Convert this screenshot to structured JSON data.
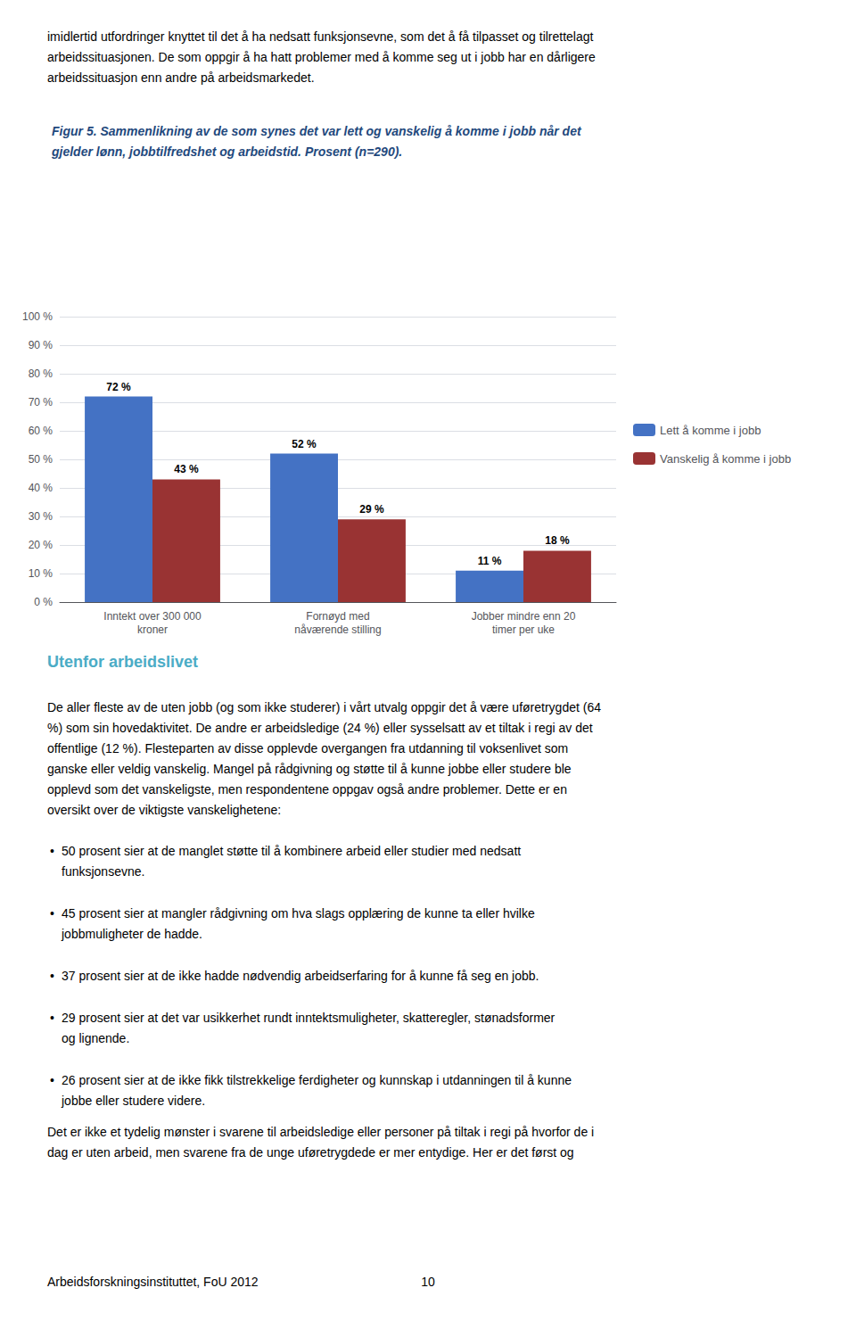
{
  "chart_data": {
    "type": "bar",
    "title": "Figur 5. Sammenlikning av de som synes det var lett og vanskelig å komme i jobb når det\ngjelder lønn, jobbtilfredshet og arbeidstid. Prosent (n=290).",
    "categories": [
      "Inntekt over 300 000\nkroner",
      "Fornøyd med\nnåværende stilling",
      "Jobber mindre enn 20\ntimer per uke"
    ],
    "series": [
      {
        "name": "Lett å komme i jobb",
        "color": "#4472C4",
        "values": [
          72,
          52,
          11
        ],
        "value_labels": [
          "72 %",
          "52 %",
          "11 %"
        ]
      },
      {
        "name": "Vanskelig å komme i jobb",
        "color": "#993333",
        "values": [
          43,
          29,
          18
        ],
        "value_labels": [
          "43 %",
          "29 %",
          "18 %"
        ]
      }
    ],
    "ylim": [
      0,
      100
    ],
    "yticks": [
      {
        "value": 0,
        "label": "0 %"
      },
      {
        "value": 10,
        "label": "10 %"
      },
      {
        "value": 20,
        "label": "20 %"
      },
      {
        "value": 30,
        "label": "30 %"
      },
      {
        "value": 40,
        "label": "40 %"
      },
      {
        "value": 50,
        "label": "50 %"
      },
      {
        "value": 60,
        "label": "60 %"
      },
      {
        "value": 70,
        "label": "70 %"
      },
      {
        "value": 80,
        "label": "80 %"
      },
      {
        "value": 90,
        "label": "90 %"
      },
      {
        "value": 100,
        "label": "100 %"
      }
    ],
    "grid": true,
    "legend": "right",
    "data_labels": true,
    "annotations": [
      "imidlertid utfordringer knyttet til det å ha nedsatt funksjonsevne, som det å få tilpasset og tilrettelagt",
      "arbeidssituasjonen. De som oppgir å ha hatt problemer med å komme seg ut i jobb har en dårligere",
      "arbeidssituasjon enn andre på arbeidsmarkedet.",
      "Utenfor arbeidslivet",
      "De aller fleste av de uten jobb (og som ikke studerer) i vårt utvalg oppgir det å være uføretrygdet (64",
      "%) som sin hovedaktivitet. De andre er arbeidsledige (24 %) eller sysselsatt av et tiltak i regi av det",
      "offentlige (12 %). Flesteparten av disse opplevde overgangen fra utdanning til voksenlivet som",
      "ganske eller veldig vanskelig. Mangel på rådgivning og støtte til å kunne jobbe eller studere ble",
      "opplevd som det vanskeligste, men respondentene oppgav også andre problemer. Dette er en",
      "oversikt over de viktigste vanskelighetene:",
      "•",
      "50 prosent sier at de manglet støtte til å kombinere arbeid eller studier med nedsatt",
      "funksjonsevne.",
      "•",
      "45 prosent sier at mangler rådgivning om hva slags opplæring de kunne ta eller hvilke",
      "jobbmuligheter de hadde.",
      "•",
      "37 prosent sier at de ikke hadde nødvendig arbeidserfaring for å kunne få seg en jobb.",
      "•",
      "29 prosent sier at det var usikkerhet rundt inntektsmuligheter, skatteregler, stønadsformer",
      "og lignende.",
      "•",
      "26 prosent sier at de ikke fikk tilstrekkelige ferdigheter og kunnskap i utdanningen til å kunne",
      "jobbe eller studere videre.",
      "Det er ikke et tydelig mønster i svarene til arbeidsledige eller personer på tiltak i regi på hvorfor de i",
      "dag er uten arbeid, men svarene fra de unge uføretrygdede er mer entydige. Her er det først og",
      "Arbeidsforskningsinstituttet, FoU 2012",
      "10"
    ]
  }
}
